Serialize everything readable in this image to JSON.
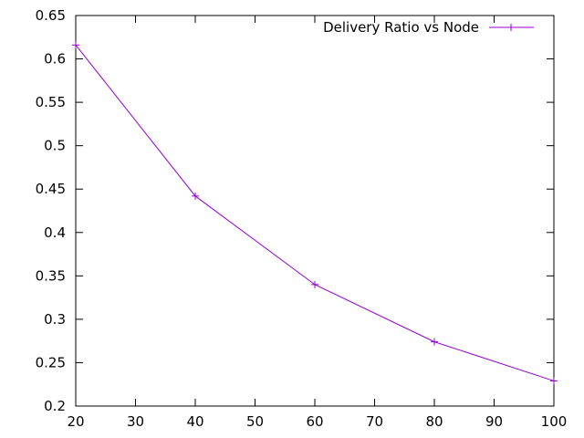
{
  "chart_data": {
    "type": "line",
    "title": "",
    "xlabel": "",
    "ylabel": "",
    "xlim": [
      20,
      100
    ],
    "ylim": [
      0.2,
      0.65
    ],
    "x_ticks": [
      "20",
      "30",
      "40",
      "50",
      "60",
      "70",
      "80",
      "90",
      "100"
    ],
    "y_ticks": [
      "0.2",
      "0.25",
      "0.3",
      "0.35",
      "0.4",
      "0.45",
      "0.5",
      "0.55",
      "0.6",
      "0.65"
    ],
    "grid": false,
    "legend_position": "top-right",
    "series": [
      {
        "name": "Delivery Ratio vs Node",
        "color": "#9400d3",
        "marker": "plus",
        "points": [
          {
            "x": 20,
            "y": 0.616
          },
          {
            "x": 40,
            "y": 0.442
          },
          {
            "x": 60,
            "y": 0.34
          },
          {
            "x": 80,
            "y": 0.274
          },
          {
            "x": 100,
            "y": 0.229
          }
        ]
      }
    ]
  }
}
